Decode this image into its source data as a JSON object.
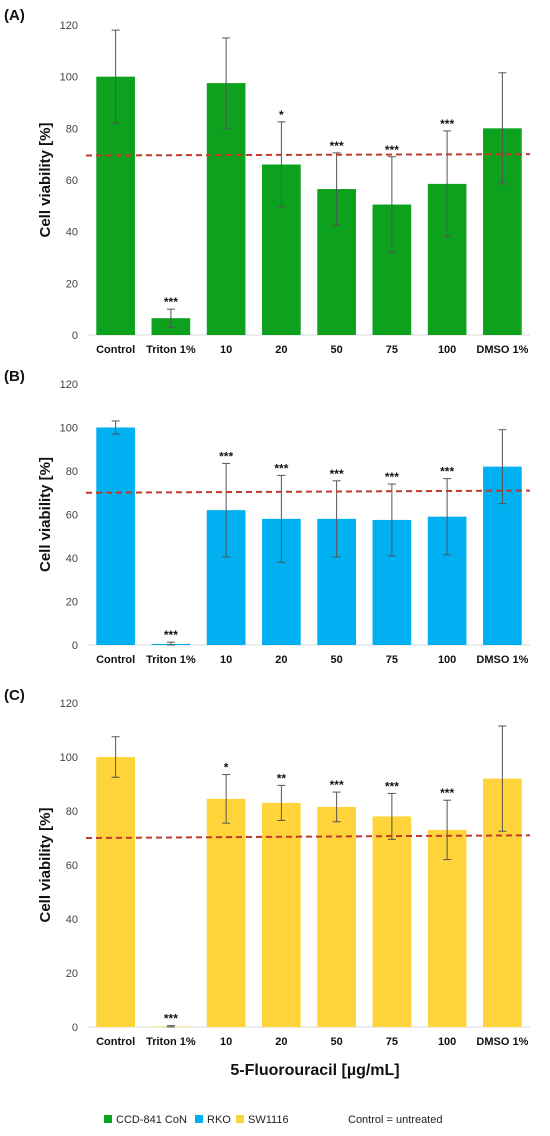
{
  "chart_data": [
    {
      "panel_label": "(A)",
      "type": "bar",
      "series_ref": "CCD-841 CoN",
      "color": "#0ca21e",
      "categories": [
        "Control",
        "Triton 1%",
        "10",
        "20",
        "50",
        "75",
        "100",
        "DMSO 1%"
      ],
      "values": [
        100,
        6.5,
        97.5,
        66,
        56.5,
        50.5,
        58.5,
        80
      ],
      "errors": [
        18,
        3.5,
        17.5,
        16.5,
        14,
        18.5,
        20.5,
        21.5
      ],
      "significance": [
        "",
        "***",
        "",
        "*",
        "***",
        "***",
        "***",
        ""
      ],
      "ylabel": "Cell viability [%]",
      "ylim": [
        0,
        120
      ],
      "yticks": [
        0,
        20,
        40,
        60,
        80,
        100,
        120
      ],
      "threshold": [
        69.5,
        70
      ],
      "grid": false
    },
    {
      "panel_label": "(B)",
      "type": "bar",
      "series_ref": "RKO",
      "color": "#00b0f0",
      "categories": [
        "Control",
        "Triton 1%",
        "10",
        "20",
        "50",
        "75",
        "100",
        "DMSO 1%"
      ],
      "values": [
        100,
        0.5,
        62,
        58,
        58,
        57.5,
        59,
        82
      ],
      "errors": [
        3,
        0.8,
        21.5,
        20,
        17.5,
        16.5,
        17.5,
        17
      ],
      "significance": [
        "",
        "***",
        "***",
        "***",
        "***",
        "***",
        "***",
        ""
      ],
      "ylabel": "Cell viability [%]",
      "ylim": [
        0,
        120
      ],
      "yticks": [
        0,
        20,
        40,
        60,
        80,
        100,
        120
      ],
      "threshold": [
        70,
        71
      ],
      "grid": false
    },
    {
      "panel_label": "(C)",
      "type": "bar",
      "series_ref": "SW1116",
      "color": "#ffd43a",
      "categories": [
        "Control",
        "Triton 1%",
        "10",
        "20",
        "50",
        "75",
        "100",
        "DMSO 1%"
      ],
      "values": [
        100,
        0.2,
        84.5,
        83,
        81.5,
        78,
        73,
        92
      ],
      "errors": [
        7.5,
        0.3,
        9,
        6.5,
        5.5,
        8.5,
        11,
        19.5
      ],
      "significance": [
        "",
        "***",
        "*",
        "**",
        "***",
        "***",
        "***",
        ""
      ],
      "ylabel": "Cell viability [%]",
      "xlabel": "5-Fluorouracil [µg/mL]",
      "ylim": [
        0,
        120
      ],
      "yticks": [
        0,
        20,
        40,
        60,
        80,
        100,
        120
      ],
      "threshold": [
        70,
        71
      ],
      "grid": false
    }
  ],
  "legend": {
    "items": [
      {
        "name": "CCD-841 CoN",
        "color": "#0ca21e"
      },
      {
        "name": "RKO",
        "color": "#00b0f0"
      },
      {
        "name": "SW1116",
        "color": "#ffd43a"
      }
    ],
    "note": "Control = untreated"
  },
  "threshold_color": "#c0392b"
}
